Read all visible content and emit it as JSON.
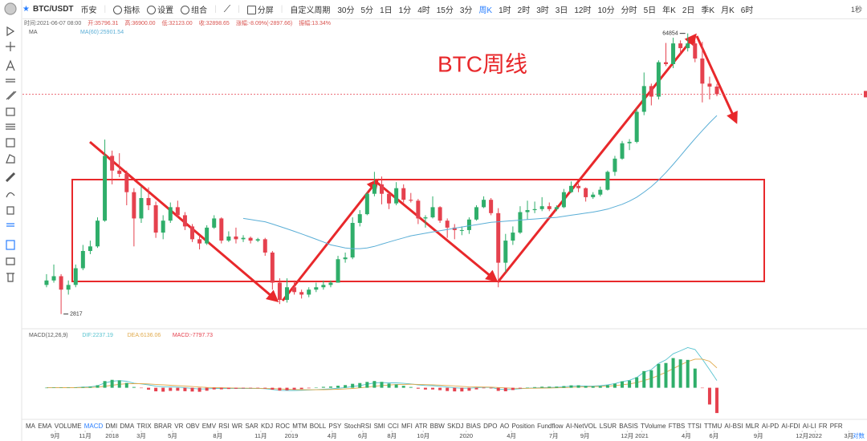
{
  "toolbar": {
    "symbol": "BTC/USDT",
    "exchange": "币安",
    "buttons": [
      "指标",
      "设置",
      "组合"
    ],
    "split": "分屏",
    "custom": "自定义周期",
    "periods": [
      "30分",
      "5分",
      "1日",
      "1分",
      "4时",
      "15分",
      "3分",
      "周K",
      "1时",
      "2时",
      "3时",
      "3日",
      "12时",
      "10分",
      "分时",
      "5日",
      "年K",
      "2日",
      "季K",
      "月K",
      "6时"
    ],
    "active_period": "周K",
    "right": "1秒"
  },
  "info": {
    "time": "时间:2021-06-07 08:00",
    "fields": [
      "开:35796.31",
      "高:36900.00",
      "低:32123.00",
      "收:32898.65",
      "涨幅:-8.09%(-2897.66)",
      "振幅:13.34%"
    ]
  },
  "indicators": {
    "items": [
      "MA",
      "EMA",
      "VOLUME",
      "MACD",
      "DMI",
      "DMA",
      "TRIX",
      "BRAR",
      "VR",
      "OBV",
      "EMV",
      "RSI",
      "WR",
      "SAR",
      "KDJ",
      "ROC",
      "MTM",
      "BOLL",
      "PSY",
      "StochRSI",
      "SMI",
      "CCI",
      "MFI",
      "ATR",
      "BBW",
      "SKDJ",
      "BIAS",
      "DPO",
      "AO",
      "Position",
      "Fundflow",
      "AI-NetVOL",
      "LSUR",
      "BASIS",
      "TVolume",
      "FTBS",
      "TTSI",
      "TTMU",
      "AI-BSI",
      "MLR",
      "AI-PD",
      "AI-FDI",
      "AI-LI",
      "FR",
      "PFR"
    ],
    "active": "MACD"
  },
  "log_toggle": "对数",
  "chart_data": {
    "type": "candlestick",
    "annotation": "BTC周线",
    "log_scale": true,
    "up_color": "#2fae6a",
    "down_color": "#e5414e",
    "price_line_color": "#e5414e",
    "ylim": [
      2390,
      72000
    ],
    "xlim": [
      -3.3,
      112.6
    ],
    "xticks": [
      {
        "value": 1.2,
        "label": "9月"
      },
      {
        "value": 5.3,
        "label": "11月"
      },
      {
        "value": 9.0,
        "label": "2018"
      },
      {
        "value": 13.0,
        "label": "3月"
      },
      {
        "value": 17.3,
        "label": "5月"
      },
      {
        "value": 23.5,
        "label": "8月"
      },
      {
        "value": 29.4,
        "label": "11月"
      },
      {
        "value": 33.6,
        "label": "2019"
      },
      {
        "value": 39.2,
        "label": "4月"
      },
      {
        "value": 43.4,
        "label": "6月"
      },
      {
        "value": 47.4,
        "label": "8月"
      },
      {
        "value": 51.7,
        "label": "10月"
      },
      {
        "value": 57.6,
        "label": "2020"
      },
      {
        "value": 63.8,
        "label": "4月"
      },
      {
        "value": 69.6,
        "label": "7月"
      },
      {
        "value": 73.9,
        "label": "9月"
      },
      {
        "value": 79.7,
        "label": "12月"
      },
      {
        "value": 81.7,
        "label": "2021"
      },
      {
        "value": 87.8,
        "label": "4月"
      },
      {
        "value": 91.6,
        "label": "6月"
      },
      {
        "value": 97.7,
        "label": "9月"
      },
      {
        "value": 103.7,
        "label": "12月"
      },
      {
        "value": 105.5,
        "label": "2022"
      },
      {
        "value": 110.1,
        "label": "3月"
      }
    ],
    "high_label_index": 88,
    "low_label_index": 2,
    "candles": [
      [
        3900,
        4400,
        3800,
        4100
      ],
      [
        4100,
        4900,
        4000,
        4300
      ],
      [
        4300,
        4400,
        2817,
        3700
      ],
      [
        3700,
        4100,
        3500,
        3900
      ],
      [
        3900,
        4900,
        3800,
        4700
      ],
      [
        4700,
        6100,
        4600,
        5700
      ],
      [
        5700,
        6400,
        5500,
        6000
      ],
      [
        6000,
        8300,
        5900,
        8000
      ],
      [
        8000,
        19800,
        7900,
        16500
      ],
      [
        16500,
        17500,
        12000,
        14000
      ],
      [
        14000,
        17000,
        13000,
        13500
      ],
      [
        13500,
        14000,
        9500,
        11000
      ],
      [
        11000,
        11500,
        6000,
        8200
      ],
      [
        8200,
        11700,
        7800,
        10300
      ],
      [
        10300,
        11600,
        9000,
        9500
      ],
      [
        9500,
        9900,
        6600,
        7000
      ],
      [
        7000,
        8500,
        6500,
        8000
      ],
      [
        8000,
        9800,
        7800,
        9300
      ],
      [
        9300,
        10000,
        8300,
        8500
      ],
      [
        8500,
        8800,
        7200,
        7500
      ],
      [
        7500,
        7700,
        6300,
        6500
      ],
      [
        6500,
        6800,
        5800,
        6200
      ],
      [
        6200,
        7600,
        6100,
        7400
      ],
      [
        7400,
        8500,
        7300,
        8200
      ],
      [
        8200,
        8300,
        6200,
        6400
      ],
      [
        6400,
        7100,
        6300,
        6700
      ],
      [
        6700,
        7400,
        6200,
        6500
      ],
      [
        6500,
        6800,
        6300,
        6600
      ],
      [
        6600,
        6700,
        6200,
        6400
      ],
      [
        6400,
        6600,
        6300,
        6500
      ],
      [
        6500,
        6600,
        5400,
        5600
      ],
      [
        5600,
        5700,
        3700,
        4000
      ],
      [
        4000,
        4200,
        3150,
        3300
      ],
      [
        3300,
        4200,
        3200,
        3800
      ],
      [
        3800,
        4100,
        3500,
        3600
      ],
      [
        3600,
        3700,
        3350,
        3500
      ],
      [
        3500,
        3800,
        3400,
        3700
      ],
      [
        3700,
        4000,
        3600,
        3800
      ],
      [
        3800,
        4100,
        3700,
        3900
      ],
      [
        3900,
        4100,
        3800,
        4000
      ],
      [
        4000,
        5400,
        4000,
        5200
      ],
      [
        5200,
        5600,
        5000,
        5300
      ],
      [
        5300,
        8300,
        5200,
        7800
      ],
      [
        7800,
        9000,
        7500,
        8600
      ],
      [
        8600,
        11000,
        8500,
        10800
      ],
      [
        10800,
        13800,
        10500,
        12000
      ],
      [
        12000,
        13100,
        9600,
        10800
      ],
      [
        10800,
        11000,
        9100,
        9700
      ],
      [
        9700,
        12300,
        9500,
        11500
      ],
      [
        11500,
        12000,
        9800,
        10100
      ],
      [
        10100,
        10900,
        9800,
        10000
      ],
      [
        10000,
        10200,
        7700,
        8200
      ],
      [
        8200,
        8500,
        7400,
        8300
      ],
      [
        8300,
        10500,
        8200,
        9300
      ],
      [
        9300,
        9400,
        7800,
        8000
      ],
      [
        8000,
        8200,
        6600,
        7400
      ],
      [
        7400,
        7700,
        6500,
        7200
      ],
      [
        7200,
        7500,
        6800,
        7200
      ],
      [
        7200,
        8300,
        6900,
        8100
      ],
      [
        8100,
        9500,
        8000,
        9300
      ],
      [
        9300,
        10500,
        9200,
        10100
      ],
      [
        10100,
        10300,
        8500,
        8700
      ],
      [
        8700,
        9200,
        3800,
        5000
      ],
      [
        5000,
        6900,
        4500,
        6400
      ],
      [
        6400,
        7500,
        6100,
        7000
      ],
      [
        7000,
        9400,
        6900,
        8800
      ],
      [
        8800,
        10000,
        8100,
        9000
      ],
      [
        9000,
        9900,
        8700,
        9100
      ],
      [
        9100,
        10400,
        8900,
        9400
      ],
      [
        9400,
        9800,
        8900,
        9100
      ],
      [
        9100,
        9500,
        8900,
        9300
      ],
      [
        9300,
        11400,
        9200,
        11000
      ],
      [
        11000,
        12400,
        10900,
        11800
      ],
      [
        11800,
        12100,
        11000,
        11500
      ],
      [
        11500,
        11600,
        9900,
        10400
      ],
      [
        10400,
        11000,
        10200,
        10700
      ],
      [
        10700,
        11700,
        10500,
        11300
      ],
      [
        11300,
        14000,
        11200,
        13800
      ],
      [
        13800,
        16500,
        13200,
        16000
      ],
      [
        16000,
        19500,
        15800,
        19000
      ],
      [
        19000,
        19900,
        17600,
        19300
      ],
      [
        19300,
        28000,
        19000,
        27000
      ],
      [
        27000,
        41900,
        26000,
        36000
      ],
      [
        36000,
        37000,
        29000,
        32000
      ],
      [
        32000,
        48000,
        31000,
        47000
      ],
      [
        47000,
        58300,
        45000,
        46000
      ],
      [
        46000,
        61800,
        44000,
        58000
      ],
      [
        58000,
        60000,
        51000,
        55000
      ],
      [
        55000,
        64854,
        53000,
        58000
      ],
      [
        58000,
        59500,
        47000,
        49000
      ],
      [
        49000,
        59000,
        30000,
        37000
      ],
      [
        37000,
        40000,
        31000,
        35796.31
      ],
      [
        35796.31,
        36900,
        32123,
        32898.65
      ]
    ],
    "ma_label": "MA",
    "ma": {
      "name": "MA(60):25901.54",
      "color": "#5aaed6",
      "values": [
        null,
        null,
        null,
        null,
        null,
        null,
        null,
        null,
        null,
        null,
        null,
        null,
        null,
        null,
        null,
        null,
        null,
        null,
        null,
        null,
        null,
        null,
        null,
        null,
        null,
        null,
        null,
        8200,
        8100,
        8000,
        7900,
        7700,
        7500,
        7300,
        7100,
        6900,
        6700,
        6500,
        6300,
        6100,
        6000,
        5900,
        5850,
        5850,
        5900,
        6000,
        6150,
        6300,
        6450,
        6600,
        6750,
        6850,
        6950,
        7050,
        7150,
        7250,
        7350,
        7450,
        7550,
        7650,
        7750,
        7850,
        7900,
        7950,
        8000,
        8050,
        8100,
        8150,
        8200,
        8250,
        8300,
        8400,
        8500,
        8600,
        8700,
        8800,
        8950,
        9100,
        9350,
        9600,
        9950,
        10400,
        11000,
        11700,
        12600,
        13700,
        15000,
        16500,
        18200,
        20000,
        21900,
        23900,
        25901.54
      ]
    },
    "macd": {
      "label": "MACD(12,26,9)",
      "ylim": [
        -9500,
        14500
      ],
      "series": [
        {
          "name": "DIF:2237.19",
          "color": "#55c2cf",
          "values": [
            0,
            50,
            30,
            30,
            80,
            200,
            300,
            600,
            1500,
            2000,
            2200,
            2000,
            1400,
            1200,
            900,
            500,
            300,
            300,
            200,
            0,
            -200,
            -400,
            -350,
            -200,
            -250,
            -250,
            -250,
            -230,
            -220,
            -200,
            -300,
            -550,
            -800,
            -850,
            -850,
            -800,
            -700,
            -600,
            -450,
            -350,
            -150,
            50,
            400,
            700,
            1100,
            1500,
            1600,
            1500,
            1500,
            1350,
            1200,
            900,
            700,
            650,
            450,
            200,
            0,
            -150,
            -150,
            0,
            150,
            100,
            -400,
            -600,
            -500,
            -300,
            -150,
            -50,
            50,
            100,
            150,
            300,
            500,
            600,
            550,
            550,
            650,
            900,
            1300,
            1900,
            2300,
            3200,
            4800,
            5600,
            7500,
            8600,
            10500,
            11400,
            12400,
            11800,
            8800,
            5600,
            2237.19
          ]
        },
        {
          "name": "DEA:6136.06",
          "color": "#e0a94a",
          "values": [
            0,
            10,
            15,
            20,
            30,
            60,
            110,
            210,
            470,
            780,
            1060,
            1250,
            1280,
            1260,
            1190,
            1050,
            900,
            780,
            660,
            530,
            380,
            220,
            110,
            50,
            -10,
            -60,
            -100,
            -130,
            -150,
            -160,
            -190,
            -260,
            -370,
            -470,
            -550,
            -600,
            -620,
            -620,
            -590,
            -540,
            -460,
            -360,
            -210,
            -30,
            200,
            460,
            690,
            850,
            980,
            1050,
            1080,
            1040,
            970,
            910,
            820,
            700,
            560,
            420,
            310,
            250,
            230,
            200,
            80,
            -60,
            -150,
            -180,
            -170,
            -150,
            -110,
            -70,
            -30,
            40,
            130,
            220,
            290,
            340,
            400,
            500,
            660,
            910,
            1190,
            1590,
            2230,
            2900,
            3820,
            4780,
            5920,
            7020,
            8100,
            8840,
            8830,
            8180,
            6136.06
          ]
        },
        {
          "name": "MACD:-7797.73",
          "color": "#e5414e",
          "values": [
            0,
            80,
            30,
            20,
            100,
            280,
            380,
            780,
            2060,
            2440,
            2280,
            1500,
            240,
            -120,
            -580,
            -1100,
            -1200,
            -960,
            -920,
            -1060,
            -1160,
            -1240,
            -920,
            -500,
            -480,
            -380,
            -300,
            -200,
            -140,
            -80,
            -220,
            -580,
            -860,
            -760,
            -600,
            -400,
            -160,
            40,
            280,
            380,
            620,
            820,
            1220,
            1460,
            1800,
            2080,
            1820,
            1300,
            1040,
            600,
            240,
            -280,
            -540,
            -520,
            -740,
            -1000,
            -1120,
            -1140,
            -920,
            -500,
            -160,
            -200,
            -960,
            -1080,
            -700,
            -240,
            40,
            200,
            320,
            340,
            360,
            520,
            740,
            760,
            520,
            420,
            500,
            800,
            1280,
            1980,
            2220,
            3220,
            5140,
            5400,
            7360,
            7640,
            9160,
            8760,
            8600,
            5920,
            -60,
            -5160,
            -7797.73
          ]
        }
      ]
    }
  }
}
